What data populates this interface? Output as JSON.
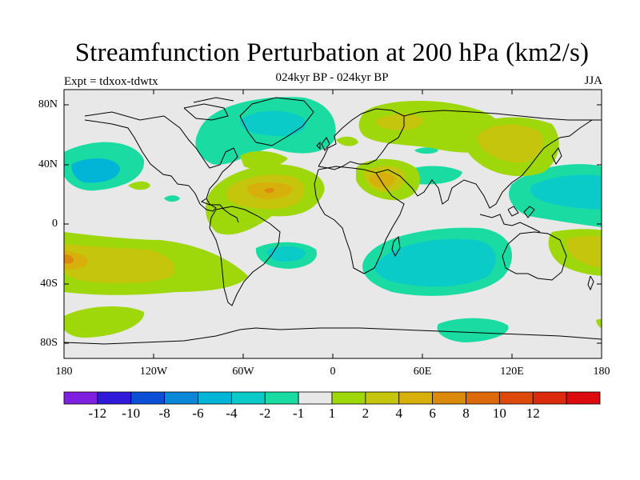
{
  "title": "Streamfunction Perturbation at 200 hPa (km2/s)",
  "subtitle": "024kyr BP - 024kyr BP",
  "left_label": "Expt = tdxox-tdwtx",
  "right_label": "JJA",
  "lat_labels": [
    "80N",
    "40N",
    "0",
    "40S",
    "80S"
  ],
  "lon_labels": [
    "180",
    "120W",
    "60W",
    "0",
    "60E",
    "120E",
    "180"
  ],
  "colorbar": {
    "colors": [
      "#7f1fdf",
      "#3019d8",
      "#0a4fd6",
      "#0b87d8",
      "#02b4d6",
      "#0bcbc9",
      "#1adca2",
      "#e8e8e8",
      "#9ed70a",
      "#c6c50e",
      "#d7b00c",
      "#dc8a0c",
      "#dc6a0b",
      "#dd490a",
      "#dc2a0c",
      "#dc0b0d"
    ],
    "labels": [
      "-12",
      "-10",
      "-8",
      "-6",
      "-4",
      "-2",
      "-1",
      "1",
      "2",
      "4",
      "6",
      "8",
      "10",
      "12"
    ]
  },
  "field_colors": {
    "neutral": "#e8e8e8",
    "neg1": "#1adca2",
    "neg2": "#0bcbc9",
    "neg4": "#02b4d6",
    "pos1": "#9ed70a",
    "pos2": "#c6c50e",
    "pos4": "#d7b00c",
    "pos6": "#dc8a0c",
    "pos8": "#dc6a0b"
  }
}
